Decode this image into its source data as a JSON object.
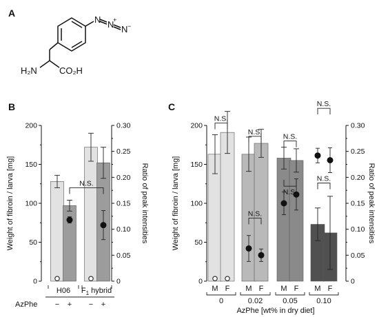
{
  "panels": {
    "a": "A",
    "b": "B",
    "c": "C"
  },
  "molecule": {
    "amine": "H₂N",
    "acid": "CO₂H",
    "azide_n": "N",
    "plus": "+",
    "minus": "−"
  },
  "chart_data": [
    {
      "id": "B",
      "type": "bar",
      "left_axis": {
        "label": "Weight of fibroin / larva [mg]",
        "ylim": [
          0,
          200
        ],
        "ticks": [
          0,
          50,
          100,
          150,
          200
        ]
      },
      "right_axis": {
        "label": "Ratio of peak intensities",
        "ylim": [
          0,
          0.3
        ],
        "ticks": [
          "0",
          "0.05",
          "0.10",
          "0.15",
          "0.20",
          "0.25",
          "0.30"
        ]
      },
      "groups": [
        {
          "label": "H06",
          "label_sub": "",
          "label_post": ""
        },
        {
          "label": "F",
          "label_sub": "1",
          "label_post": " hybrid"
        }
      ],
      "row_label": "AzPhe",
      "bars": [
        {
          "group": 0,
          "azphe": "−",
          "value": 128,
          "err": 8,
          "color": "#e2e2e2"
        },
        {
          "group": 0,
          "azphe": "+",
          "value": 97,
          "err": 7,
          "color": "#9c9c9c"
        },
        {
          "group": 1,
          "azphe": "−",
          "value": 172,
          "err": 18,
          "color": "#e2e2e2"
        },
        {
          "group": 1,
          "azphe": "+",
          "value": 152,
          "err": 20,
          "color": "#9c9c9c"
        }
      ],
      "ratios": [
        {
          "bar": 0,
          "value": 0.005,
          "err": 0,
          "open": true
        },
        {
          "bar": 1,
          "value": 0.118,
          "err": 0.006,
          "open": false
        },
        {
          "bar": 2,
          "value": 0.005,
          "err": 0,
          "open": true
        },
        {
          "bar": 3,
          "value": 0.108,
          "err": 0.028,
          "open": false
        }
      ],
      "brackets": [
        {
          "label": "N.S.",
          "from_bar": 1,
          "to_bar": 3,
          "value": 120,
          "drop": 8
        }
      ]
    },
    {
      "id": "C",
      "type": "bar",
      "xlabel": "AzPhe [wt% in dry diet]",
      "left_axis": {
        "label": "Weight of fibroin / larva [mg]",
        "ylim": [
          0,
          200
        ],
        "ticks": [
          0,
          50,
          100,
          150,
          200
        ]
      },
      "right_axis": {
        "label": "Ratio of peak intensities",
        "ylim": [
          0,
          0.3
        ],
        "ticks": [
          "0",
          "0.05",
          "0.10",
          "0.15",
          "0.20",
          "0.25",
          "0.30"
        ]
      },
      "groups": [
        "0",
        "0.02",
        "0.05",
        "0.10"
      ],
      "sex_labels": [
        "M",
        "F"
      ],
      "bars": [
        {
          "group": 0,
          "sex": 0,
          "value": 163,
          "err": 25,
          "color": "#e2e2e2"
        },
        {
          "group": 0,
          "sex": 1,
          "value": 191,
          "err": 27,
          "color": "#e2e2e2"
        },
        {
          "group": 1,
          "sex": 0,
          "value": 163,
          "err": 22,
          "color": "#b9b9b9"
        },
        {
          "group": 1,
          "sex": 1,
          "value": 177,
          "err": 18,
          "color": "#b9b9b9"
        },
        {
          "group": 2,
          "sex": 0,
          "value": 158,
          "err": 14,
          "color": "#8a8a8a"
        },
        {
          "group": 2,
          "sex": 1,
          "value": 155,
          "err": 15,
          "color": "#8a8a8a"
        },
        {
          "group": 3,
          "sex": 0,
          "value": 73,
          "err": 21,
          "color": "#505050"
        },
        {
          "group": 3,
          "sex": 1,
          "value": 62,
          "err": 47,
          "color": "#505050"
        }
      ],
      "ratios": [
        {
          "bar": 0,
          "value": 0.005,
          "err": 0,
          "open": true
        },
        {
          "bar": 1,
          "value": 0.005,
          "err": 0,
          "open": true
        },
        {
          "bar": 2,
          "value": 0.063,
          "err": 0.025,
          "open": false
        },
        {
          "bar": 3,
          "value": 0.05,
          "err": 0.012,
          "open": false
        },
        {
          "bar": 4,
          "value": 0.15,
          "err": 0.022,
          "open": false
        },
        {
          "bar": 5,
          "value": 0.167,
          "err": 0.03,
          "open": false
        },
        {
          "bar": 6,
          "value": 0.242,
          "err": 0.014,
          "open": false
        },
        {
          "bar": 7,
          "value": 0.233,
          "err": 0.024,
          "open": false
        }
      ],
      "brackets": [
        {
          "label": "N.S.",
          "from_bar": 0,
          "to_bar": 1,
          "value": 203,
          "drop": 8,
          "label_side": "above"
        },
        {
          "label": "N.S.",
          "from_bar": 2,
          "to_bar": 3,
          "value": 186,
          "drop": 8,
          "label_side": "above"
        },
        {
          "label": "N.S.",
          "from_bar": 2,
          "to_bar": 3,
          "value": 81,
          "drop": 8,
          "label_side": "above"
        },
        {
          "label": "N.S.",
          "from_bar": 4,
          "to_bar": 5,
          "value": 180,
          "drop": 8,
          "label_side": "above"
        },
        {
          "label": "N.S.",
          "from_bar": 4,
          "to_bar": 5,
          "value": 122,
          "drop": -8,
          "label_side": "below"
        },
        {
          "label": "N.S.",
          "from_bar": 6,
          "to_bar": 7,
          "value": 222,
          "drop": 8,
          "label_side": "above"
        },
        {
          "label": "N.S.",
          "from_bar": 6,
          "to_bar": 7,
          "value": 126,
          "drop": 8,
          "label_side": "above"
        }
      ]
    }
  ]
}
